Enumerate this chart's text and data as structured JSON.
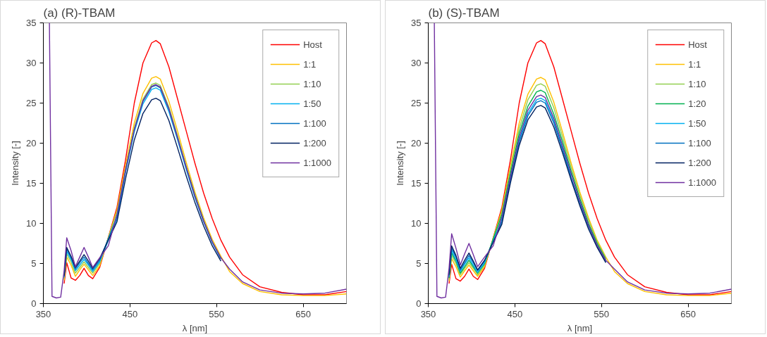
{
  "chart_data": [
    {
      "type": "line",
      "title": "(a) (R)-TBAM",
      "xlabel": "λ [nm]",
      "ylabel": "Intensity [-]",
      "xlim": [
        350,
        700
      ],
      "xticks": [
        350,
        450,
        550,
        650
      ],
      "ylim": [
        0,
        35
      ],
      "yticks": [
        0,
        5,
        10,
        15,
        20,
        25,
        30,
        35
      ],
      "grid": false,
      "legend": "top right",
      "marker": "none",
      "line_style": "solid",
      "series": [
        {
          "name": "Host",
          "color": "#ff0000",
          "x": [
            374,
            377,
            382,
            387,
            392,
            397,
            402,
            407,
            415,
            435,
            445,
            455,
            465,
            475,
            480,
            485,
            495,
            505,
            515,
            525,
            535,
            545,
            555,
            565,
            580,
            600,
            625,
            650,
            675,
            700
          ],
          "values": [
            2.5,
            5.1,
            3.2,
            2.9,
            3.5,
            4.4,
            3.5,
            3.1,
            4.5,
            12.0,
            18,
            25,
            30,
            32.5,
            32.8,
            32.4,
            29.5,
            25.5,
            21.5,
            17.5,
            13.8,
            10.6,
            7.9,
            5.8,
            3.6,
            2.1,
            1.4,
            1.1,
            1.1,
            1.5
          ]
        },
        {
          "name": "1:1",
          "color": "#ffc000",
          "x": [
            374,
            377,
            382,
            387,
            392,
            397,
            402,
            407,
            415,
            435,
            445,
            455,
            465,
            475,
            480,
            485,
            495,
            505,
            515,
            525,
            535,
            545,
            555,
            565,
            580,
            600,
            625,
            650,
            675,
            700
          ],
          "values": [
            2.9,
            5.8,
            4.8,
            3.4,
            4.2,
            4.9,
            4.2,
            3.5,
            4.7,
            11.7,
            17.3,
            22.5,
            26.2,
            28.1,
            28.3,
            28.0,
            25.2,
            21.5,
            17.6,
            13.9,
            10.7,
            8.0,
            5.9,
            4.0,
            2.5,
            1.5,
            1.1,
            1.0,
            1.0,
            1.2
          ]
        },
        {
          "name": "1:10",
          "color": "#92d050",
          "x": [
            374,
            377,
            382,
            387,
            392,
            397,
            402,
            407,
            415,
            435,
            445,
            455,
            465,
            475,
            480,
            485,
            495,
            505,
            515,
            525,
            535,
            545,
            555
          ],
          "values": [
            3.1,
            6.2,
            5.2,
            3.8,
            4.5,
            5.2,
            4.5,
            3.8,
            5.0,
            11.4,
            16.8,
            21.9,
            25.5,
            27.3,
            27.5,
            27.2,
            24.5,
            20.9,
            17.1,
            13.6,
            10.4,
            7.7,
            5.7
          ]
        },
        {
          "name": "1:50",
          "color": "#00b0f0",
          "x": [
            374,
            377,
            382,
            387,
            392,
            397,
            402,
            407,
            415,
            435,
            445,
            455,
            465,
            475,
            480,
            485,
            495,
            505,
            515,
            525,
            535,
            545,
            555
          ],
          "values": [
            3.3,
            6.5,
            5.5,
            4.1,
            4.8,
            5.5,
            4.8,
            4.0,
            5.2,
            10.5,
            16.4,
            21.4,
            24.9,
            26.7,
            26.9,
            26.6,
            23.9,
            20.4,
            16.7,
            13.2,
            10.2,
            7.6,
            5.6
          ]
        },
        {
          "name": "1:100",
          "color": "#0070c0",
          "x": [
            374,
            377,
            382,
            387,
            392,
            397,
            402,
            407,
            415,
            435,
            445,
            455,
            465,
            475,
            480,
            485,
            495,
            505,
            515,
            525,
            535,
            545,
            555
          ],
          "values": [
            3.4,
            6.8,
            5.7,
            4.3,
            5.1,
            5.8,
            5.0,
            4.2,
            5.4,
            10.8,
            16.6,
            21.7,
            25.2,
            27.0,
            27.2,
            26.9,
            24.2,
            20.6,
            16.9,
            13.4,
            10.3,
            7.7,
            5.6
          ]
        },
        {
          "name": "1:200",
          "color": "#002060",
          "x": [
            374,
            377,
            382,
            387,
            392,
            397,
            402,
            407,
            415,
            435,
            445,
            455,
            465,
            475,
            480,
            485,
            495,
            505,
            515,
            525,
            535,
            545,
            555
          ],
          "values": [
            3.5,
            7.0,
            5.9,
            4.5,
            5.3,
            6.1,
            5.3,
            4.4,
            5.6,
            10.2,
            15.6,
            20.4,
            23.7,
            25.4,
            25.6,
            25.3,
            22.8,
            19.4,
            15.9,
            12.6,
            9.7,
            7.2,
            5.3
          ]
        },
        {
          "name": "1:1000",
          "color": "#7030a0",
          "x": [
            357,
            360,
            365,
            370,
            374,
            377,
            382,
            387,
            392,
            397,
            402,
            407,
            415,
            425,
            435,
            445,
            455,
            465,
            475,
            480,
            485,
            495,
            505,
            515,
            525,
            535,
            545,
            555,
            565,
            580,
            600,
            625,
            650,
            675,
            700
          ],
          "values": [
            35,
            0.9,
            0.7,
            0.8,
            4.1,
            8.2,
            6.6,
            4.6,
            5.8,
            7.0,
            5.8,
            4.5,
            5.7,
            7.2,
            11.1,
            16.7,
            21.7,
            25.3,
            27.1,
            27.3,
            27.0,
            24.3,
            20.7,
            17.0,
            13.4,
            10.3,
            7.7,
            5.7,
            4.3,
            2.7,
            1.7,
            1.3,
            1.2,
            1.3,
            1.8
          ]
        }
      ]
    },
    {
      "type": "line",
      "title": "(b) (S)-TBAM",
      "xlabel": "λ [nm]",
      "ylabel": "Intensity [-]",
      "xlim": [
        350,
        700
      ],
      "xticks": [
        350,
        450,
        550,
        650
      ],
      "ylim": [
        0,
        35
      ],
      "yticks": [
        0,
        5,
        10,
        15,
        20,
        25,
        30,
        35
      ],
      "grid": false,
      "legend": "top right",
      "marker": "none",
      "line_style": "solid",
      "series": [
        {
          "name": "Host",
          "color": "#ff0000",
          "x": [
            374,
            377,
            382,
            387,
            392,
            397,
            402,
            407,
            415,
            435,
            445,
            455,
            465,
            475,
            480,
            485,
            495,
            505,
            515,
            525,
            535,
            545,
            555,
            565,
            580,
            600,
            625,
            650,
            675,
            700
          ],
          "values": [
            2.5,
            4.9,
            3.1,
            2.8,
            3.4,
            4.3,
            3.4,
            3.0,
            4.4,
            12.0,
            18,
            25,
            30,
            32.5,
            32.8,
            32.4,
            29.5,
            25.5,
            21.5,
            17.5,
            13.8,
            10.6,
            7.9,
            5.8,
            3.6,
            2.1,
            1.4,
            1.1,
            1.1,
            1.5
          ]
        },
        {
          "name": "1:1",
          "color": "#ffc000",
          "x": [
            374,
            377,
            382,
            387,
            392,
            397,
            402,
            407,
            415,
            435,
            445,
            455,
            465,
            475,
            480,
            485,
            495,
            505,
            515,
            525,
            535,
            545,
            555,
            565,
            580,
            600,
            625,
            650,
            675,
            700
          ],
          "values": [
            2.8,
            5.6,
            4.6,
            3.3,
            4.1,
            4.8,
            4.1,
            3.4,
            4.6,
            11.7,
            17.2,
            22.5,
            26.1,
            28.0,
            28.2,
            27.9,
            25.1,
            21.4,
            17.5,
            13.9,
            10.7,
            7.9,
            5.8,
            4.0,
            2.5,
            1.5,
            1.1,
            1.0,
            1.0,
            1.3
          ]
        },
        {
          "name": "1:10",
          "color": "#92d050",
          "x": [
            374,
            377,
            382,
            387,
            392,
            397,
            402,
            407,
            415,
            435,
            445,
            455,
            465,
            475,
            480,
            485,
            495,
            505,
            515,
            525,
            535,
            545,
            555
          ],
          "values": [
            3.0,
            6.0,
            5.0,
            3.6,
            4.4,
            5.1,
            4.4,
            3.6,
            4.8,
            11.4,
            16.8,
            21.8,
            25.4,
            27.2,
            27.4,
            27.1,
            24.4,
            20.8,
            17.0,
            13.5,
            10.4,
            7.7,
            5.7
          ]
        },
        {
          "name": "1:20",
          "color": "#00b050",
          "x": [
            374,
            377,
            382,
            387,
            392,
            397,
            402,
            407,
            415,
            435,
            445,
            455,
            465,
            475,
            480,
            485,
            495,
            505,
            515,
            525,
            535,
            545,
            555
          ],
          "values": [
            3.2,
            6.3,
            5.3,
            3.8,
            4.6,
            5.4,
            4.6,
            3.8,
            5.0,
            11.1,
            16.3,
            21.2,
            24.6,
            26.4,
            26.6,
            26.3,
            23.6,
            20.2,
            16.5,
            13.1,
            10.0,
            7.5,
            5.5
          ]
        },
        {
          "name": "1:50",
          "color": "#00b0f0",
          "x": [
            374,
            377,
            382,
            387,
            392,
            397,
            402,
            407,
            415,
            435,
            445,
            455,
            465,
            475,
            480,
            485,
            495,
            505,
            515
          ],
          "values": [
            3.3,
            6.6,
            5.5,
            4.0,
            4.9,
            5.7,
            4.8,
            3.9,
            5.1,
            10.5,
            15.6,
            20.4,
            23.7,
            25.4,
            25.6,
            25.3,
            22.8,
            19.4,
            15.9
          ]
        },
        {
          "name": "1:100",
          "color": "#0070c0",
          "x": [
            374,
            377,
            382,
            387,
            392,
            397,
            402,
            407,
            415,
            435,
            445,
            455,
            465,
            475,
            480,
            485,
            495,
            505,
            515,
            525,
            535,
            545,
            555
          ],
          "values": [
            3.5,
            6.9,
            5.8,
            4.2,
            5.1,
            6.0,
            5.1,
            4.1,
            5.3,
            10.2,
            15.5,
            20.1,
            23.4,
            25.1,
            25.3,
            25.0,
            22.5,
            19.2,
            15.7,
            12.5,
            9.6,
            7.1,
            5.2
          ]
        },
        {
          "name": "1:200",
          "color": "#002060",
          "x": [
            374,
            377,
            382,
            387,
            392,
            397,
            402,
            407,
            415,
            435,
            445,
            455,
            465,
            475,
            480,
            485,
            495,
            505,
            515,
            525,
            535,
            545,
            555
          ],
          "values": [
            3.6,
            7.2,
            6.0,
            4.4,
            5.4,
            6.3,
            5.3,
            4.2,
            5.4,
            9.9,
            15.1,
            19.7,
            22.9,
            24.5,
            24.7,
            24.4,
            22.0,
            18.8,
            15.4,
            12.2,
            9.3,
            7.0,
            5.1
          ]
        },
        {
          "name": "1:1000",
          "color": "#7030a0",
          "x": [
            357,
            360,
            365,
            370,
            374,
            377,
            382,
            387,
            392,
            397,
            402,
            407,
            415,
            425,
            435,
            445,
            455,
            465,
            475,
            480,
            485,
            495,
            505,
            515,
            525,
            535,
            545,
            555,
            565,
            580,
            600,
            625,
            650,
            675,
            700
          ],
          "values": [
            35,
            0.9,
            0.7,
            0.8,
            4.4,
            8.7,
            6.9,
            4.8,
            6.2,
            7.5,
            6.1,
            4.6,
            5.8,
            7.2,
            10.8,
            15.9,
            20.7,
            24.1,
            25.8,
            26.0,
            25.7,
            23.1,
            19.7,
            16.2,
            12.8,
            9.8,
            7.3,
            5.4,
            4.3,
            2.7,
            1.7,
            1.3,
            1.2,
            1.3,
            1.8
          ]
        }
      ]
    }
  ]
}
